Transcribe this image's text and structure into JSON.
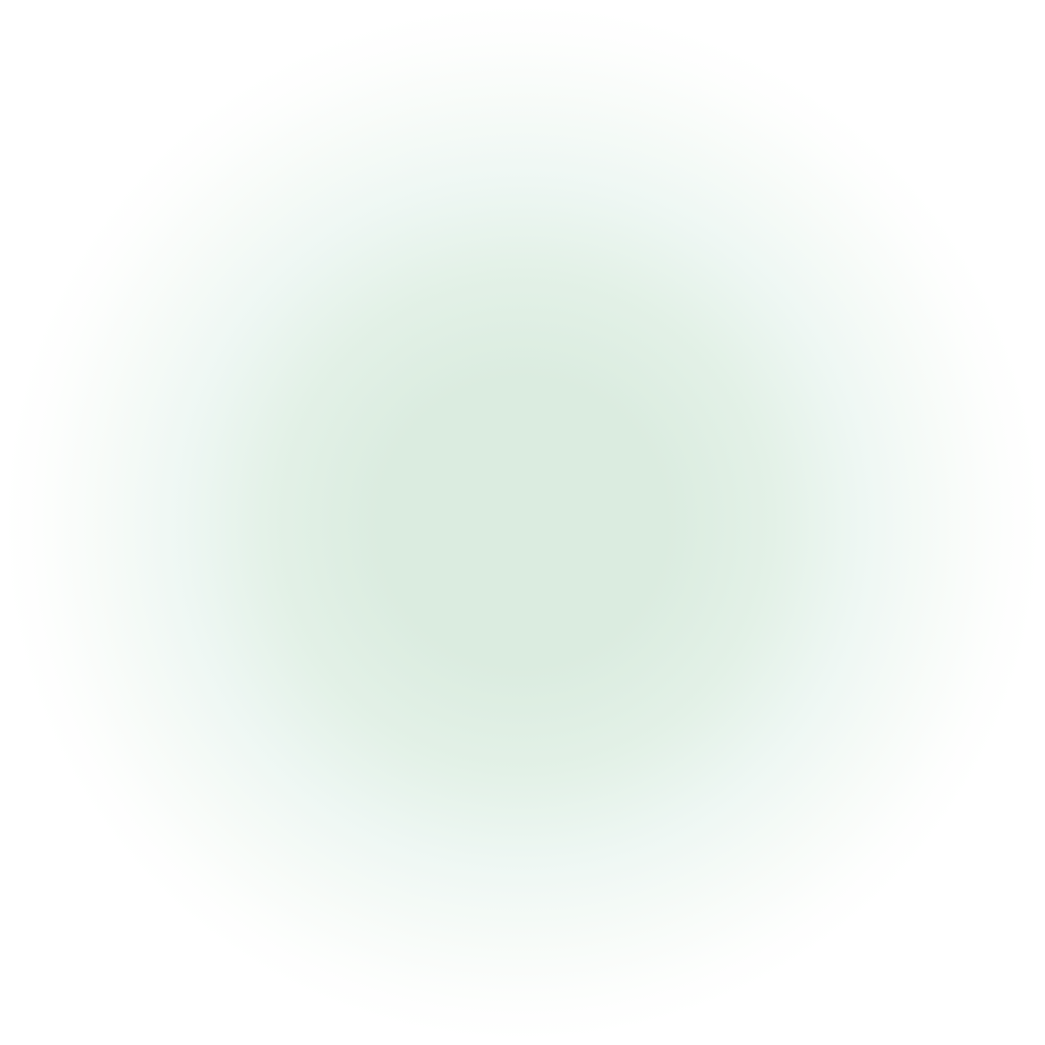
{
  "background": {
    "center_color": "#dbece0",
    "edge_color": "#ffffff"
  }
}
